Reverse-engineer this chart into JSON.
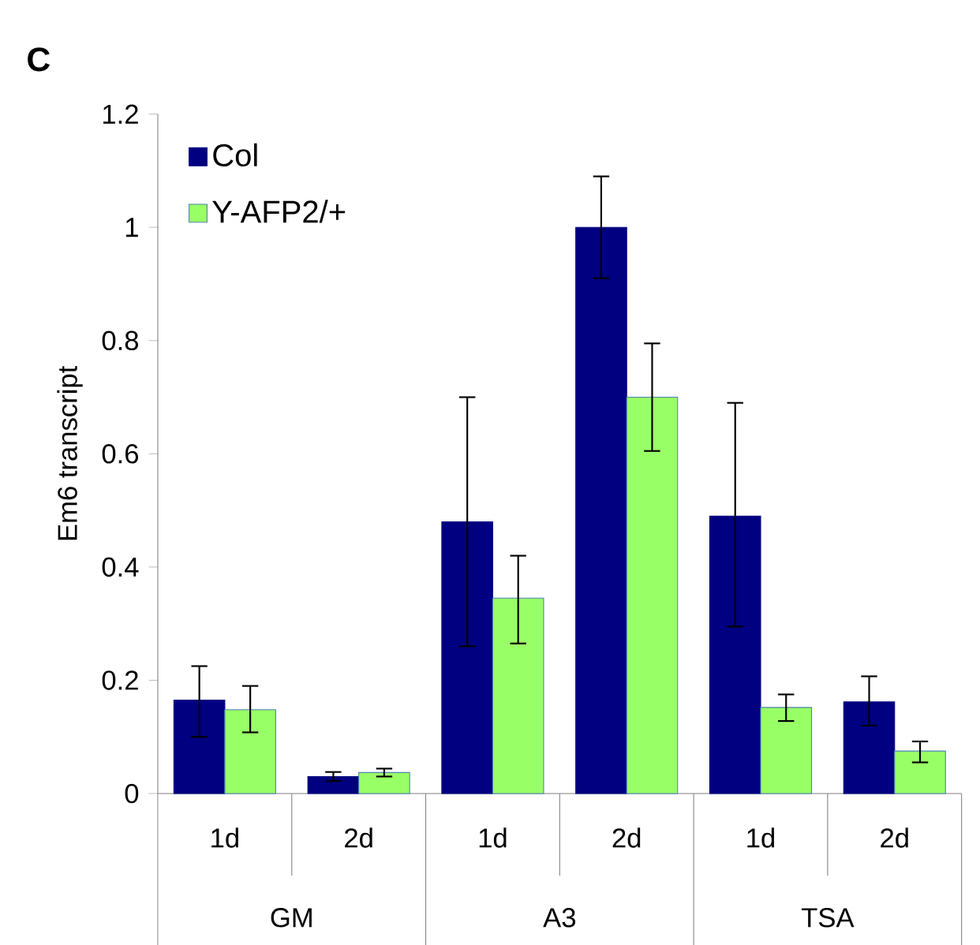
{
  "chart_data": {
    "type": "bar",
    "title": "C",
    "ylabel": "Em6 transcript",
    "categories": [
      "1d",
      "2d",
      "1d",
      "2d",
      "1d",
      "2d"
    ],
    "annotations": [
      "GM",
      "A3",
      "TSA"
    ],
    "series": [
      {
        "name": "Col",
        "color": "#000080",
        "values": [
          0.165,
          0.03,
          0.48,
          1.0,
          0.49,
          0.162
        ],
        "errors": [
          [
            0.1,
            0.225
          ],
          [
            0.022,
            0.038
          ],
          [
            0.26,
            0.7
          ],
          [
            0.91,
            1.09
          ],
          [
            0.295,
            0.69
          ],
          [
            0.12,
            0.207
          ]
        ]
      },
      {
        "name": "Y-AFP2/+",
        "color": "#99ff66",
        "values": [
          0.148,
          0.037,
          0.345,
          0.7,
          0.152,
          0.075
        ],
        "errors": [
          [
            0.108,
            0.19
          ],
          [
            0.03,
            0.044
          ],
          [
            0.265,
            0.42
          ],
          [
            0.605,
            0.795
          ],
          [
            0.128,
            0.175
          ],
          [
            0.055,
            0.092
          ]
        ]
      }
    ],
    "ylim": [
      0,
      1.2
    ],
    "yticks": [
      0,
      0.2,
      0.4,
      0.6,
      0.8,
      1,
      1.2
    ],
    "legend": "top left",
    "grid": false
  }
}
